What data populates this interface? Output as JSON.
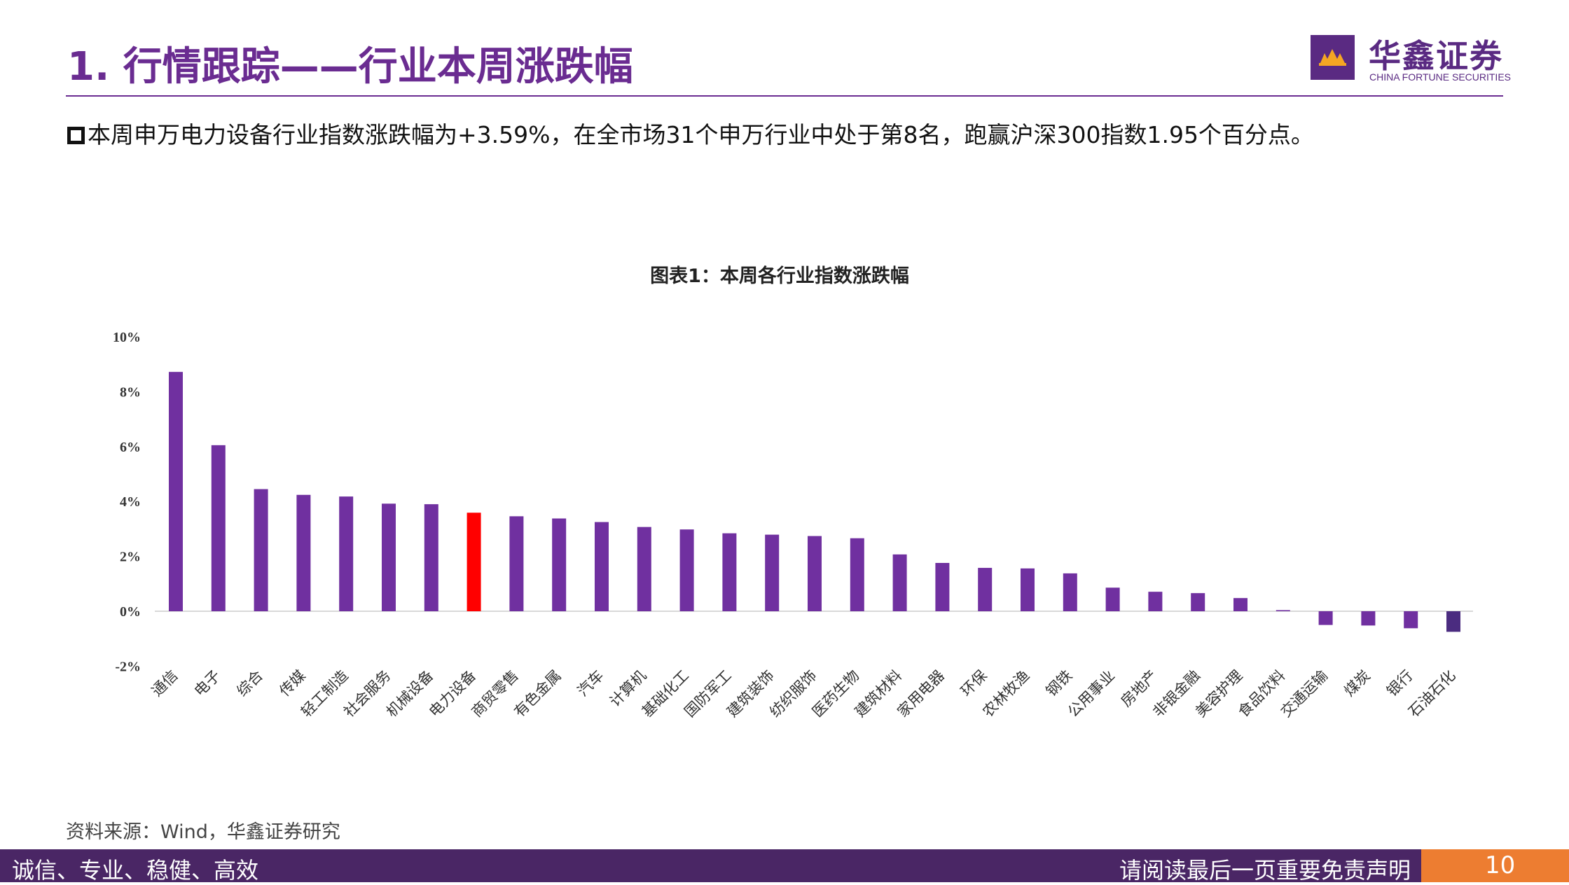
{
  "header": {
    "title": "1. 行情跟踪——行业本周涨跌幅",
    "logo_name": "华鑫证券",
    "logo_en": "CHINA FORTUNE SECURITIES"
  },
  "summary": "本周申万电力设备行业指数涨跌幅为+3.59%，在全市场31个申万行业中处于第8名，跑赢沪深300指数1.95个百分点。",
  "source": "资料来源：Wind，华鑫证券研究",
  "footer": {
    "motto": "诚信、专业、稳健、高效",
    "disclaimer": "请阅读最后一页重要免责声明",
    "page": "10"
  },
  "chart_data": {
    "type": "bar",
    "title": "图表1：本周各行业指数涨跌幅",
    "xlabel": "",
    "ylabel": "",
    "ylim": [
      -2,
      10
    ],
    "yticks": [
      "10%",
      "8%",
      "6%",
      "4%",
      "2%",
      "0%",
      "-2%"
    ],
    "grid": false,
    "categories": [
      "通信",
      "电子",
      "综合",
      "传媒",
      "轻工制造",
      "社会服务",
      "机械设备",
      "电力设备",
      "商贸零售",
      "有色金属",
      "汽车",
      "计算机",
      "基础化工",
      "国防军工",
      "建筑装饰",
      "纺织服饰",
      "医药生物",
      "建筑材料",
      "家用电器",
      "环保",
      "农林牧渔",
      "钢铁",
      "公用事业",
      "房地产",
      "非银金融",
      "美容护理",
      "食品饮料",
      "交通运输",
      "煤炭",
      "银行",
      "石油石化"
    ],
    "values": [
      8.72,
      6.05,
      4.45,
      4.24,
      4.18,
      3.92,
      3.9,
      3.59,
      3.46,
      3.38,
      3.25,
      3.07,
      2.98,
      2.84,
      2.79,
      2.74,
      2.66,
      2.07,
      1.76,
      1.58,
      1.56,
      1.38,
      0.86,
      0.71,
      0.66,
      0.48,
      0.04,
      -0.5,
      -0.52,
      -0.62,
      -0.75
    ],
    "colors": {
      "default": "#7030a0",
      "highlight": "#ff0000",
      "highlight_category": "电力设备",
      "last": "#4b2c80"
    }
  }
}
